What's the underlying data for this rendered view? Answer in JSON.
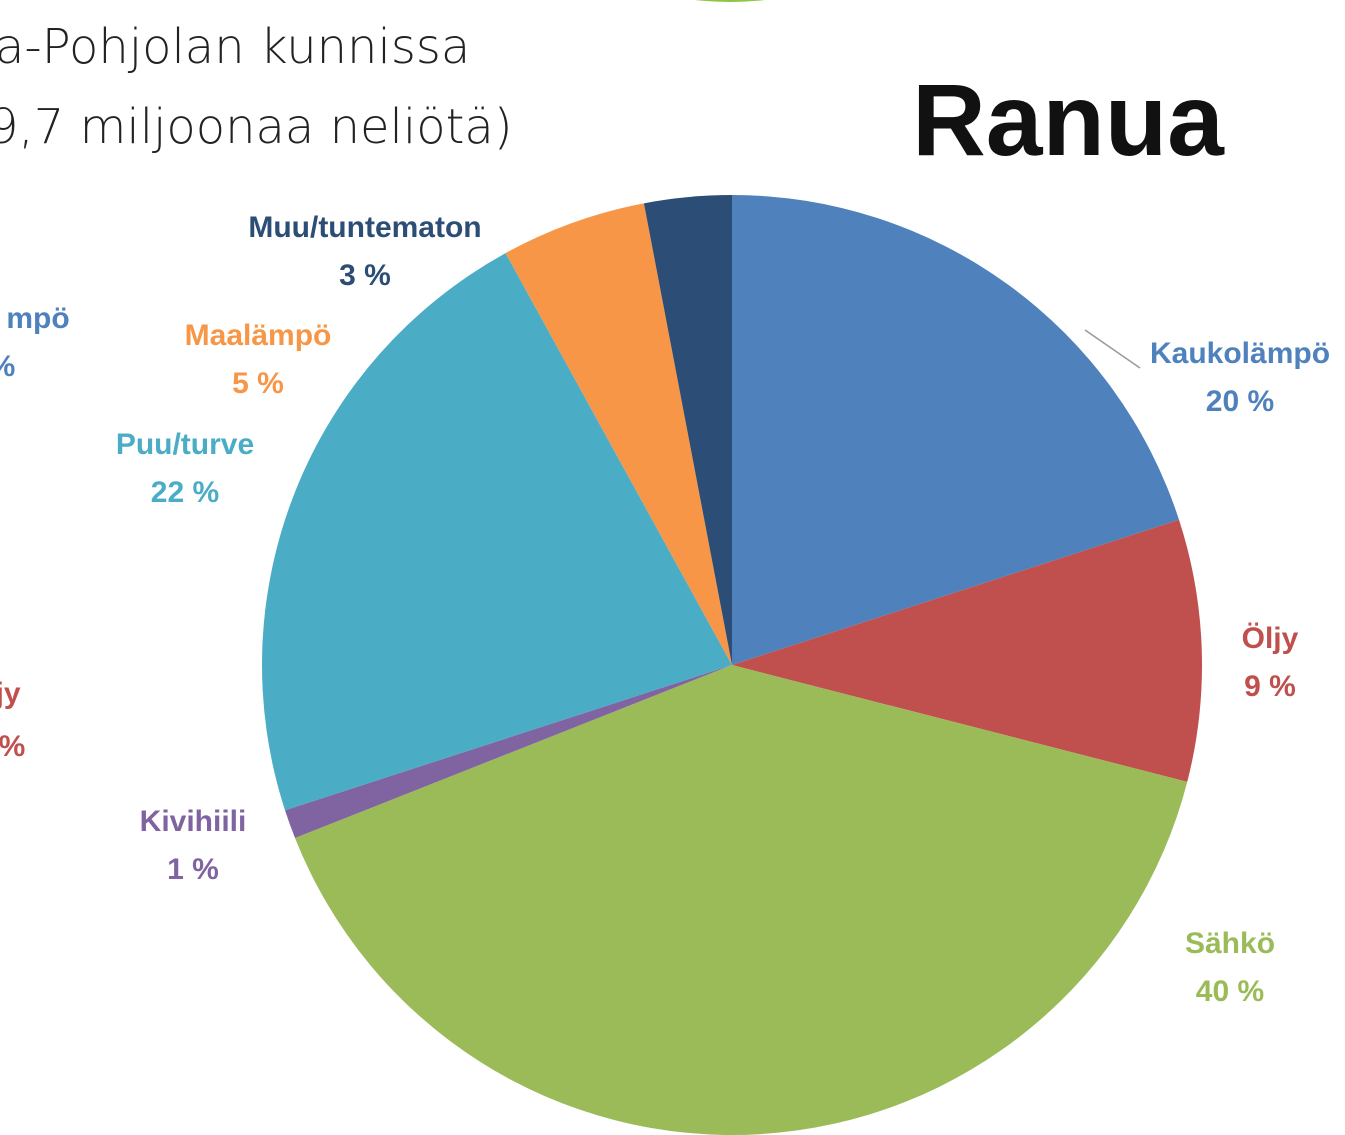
{
  "header": {
    "lines": [
      "a-Pohjolan kunnissa",
      "9,7 miljoonaa neliötä)"
    ]
  },
  "fragments": [
    "mpö",
    "%",
    "jy",
    "%"
  ],
  "chart_data": {
    "type": "pie",
    "title": "Ranua",
    "categories": [
      "Kaukolämpö",
      "Öljy",
      "Sähkö",
      "Kivihiili",
      "Puu/turve",
      "Maalämpö",
      "Muu/tuntematon"
    ],
    "values": [
      20,
      9,
      40,
      1,
      22,
      5,
      3
    ],
    "value_labels": [
      "20 %",
      "9 %",
      "40 %",
      "1 %",
      "22 %",
      "5 %",
      "3 %"
    ],
    "colors": [
      "#4f81bd",
      "#c0504d",
      "#9bbb59",
      "#8064a2",
      "#4bacc6",
      "#f79646",
      "#2c4d75"
    ]
  }
}
